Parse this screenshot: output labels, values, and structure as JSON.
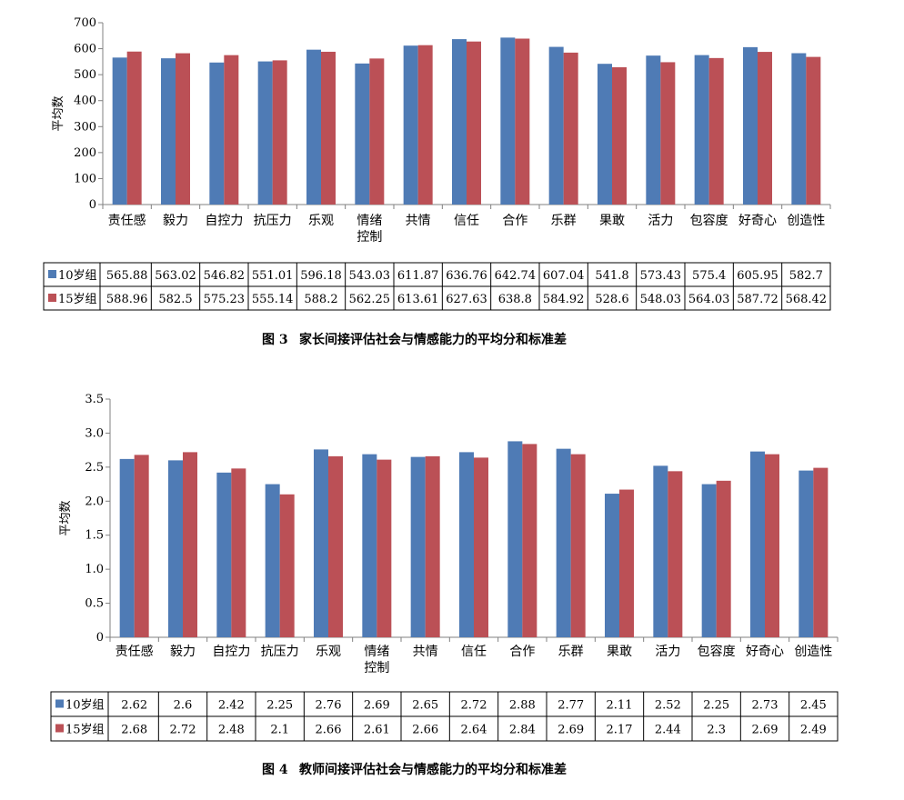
{
  "colors": {
    "s10": "#4f7bb5",
    "s15": "#bb5056",
    "axis": "#808080",
    "grid": "#000000"
  },
  "chart_data": [
    {
      "type": "bar",
      "title": "图 3　家长间接评估社会与情感能力的平均分和标准差",
      "caption_num": "图 3",
      "caption_text": "家长间接评估社会与情感能力的平均分和标准差",
      "ylabel": "平均数",
      "ylim": [
        0,
        700
      ],
      "yticks": [
        "0",
        "100",
        "200",
        "300",
        "400",
        "500",
        "600",
        "700"
      ],
      "ytick_values": [
        0,
        100,
        200,
        300,
        400,
        500,
        600,
        700
      ],
      "categories": [
        "责任感",
        "毅力",
        "自控力",
        "抗压力",
        "乐观",
        "情绪控制",
        "共情",
        "信任",
        "合作",
        "乐群",
        "果敢",
        "活力",
        "包容度",
        "好奇心",
        "创造性"
      ],
      "series": [
        {
          "name": "10岁组",
          "values": [
            565.88,
            563.02,
            546.82,
            551.01,
            596.18,
            543.03,
            611.87,
            636.76,
            642.74,
            607.04,
            541.8,
            573.43,
            575.4,
            605.95,
            582.7
          ],
          "labels": [
            "565.88",
            "563.02",
            "546.82",
            "551.01",
            "596.18",
            "543.03",
            "611.87",
            "636.76",
            "642.74",
            "607.04",
            "541.8",
            "573.43",
            "575.4",
            "605.95",
            "582.7"
          ]
        },
        {
          "name": "15岁组",
          "values": [
            588.96,
            582.5,
            575.23,
            555.14,
            588.2,
            562.25,
            613.61,
            627.63,
            638.8,
            584.92,
            528.6,
            548.03,
            564.03,
            587.72,
            568.42
          ],
          "labels": [
            "588.96",
            "582.5",
            "575.23",
            "555.14",
            "588.2",
            "562.25",
            "613.61",
            "627.63",
            "638.8",
            "584.92",
            "528.6",
            "548.03",
            "564.03",
            "587.72",
            "568.42"
          ]
        }
      ]
    },
    {
      "type": "bar",
      "title": "图 4　教师间接评估社会与情感能力的平均分和标准差",
      "caption_num": "图 4",
      "caption_text": "教师间接评估社会与情感能力的平均分和标准差",
      "ylabel": "平均数",
      "ylim": [
        0,
        3.5
      ],
      "yticks": [
        "0",
        "0.5",
        "1.0",
        "1.5",
        "2.0",
        "2.5",
        "3.0",
        "3.5"
      ],
      "ytick_values": [
        0,
        0.5,
        1.0,
        1.5,
        2.0,
        2.5,
        3.0,
        3.5
      ],
      "categories": [
        "责任感",
        "毅力",
        "自控力",
        "抗压力",
        "乐观",
        "情绪控制",
        "共情",
        "信任",
        "合作",
        "乐群",
        "果敢",
        "活力",
        "包容度",
        "好奇心",
        "创造性"
      ],
      "series": [
        {
          "name": "10岁组",
          "values": [
            2.62,
            2.6,
            2.42,
            2.25,
            2.76,
            2.69,
            2.65,
            2.72,
            2.88,
            2.77,
            2.11,
            2.52,
            2.25,
            2.73,
            2.45
          ],
          "labels": [
            "2.62",
            "2.6",
            "2.42",
            "2.25",
            "2.76",
            "2.69",
            "2.65",
            "2.72",
            "2.88",
            "2.77",
            "2.11",
            "2.52",
            "2.25",
            "2.73",
            "2.45"
          ]
        },
        {
          "name": "15岁组",
          "values": [
            2.68,
            2.72,
            2.48,
            2.1,
            2.66,
            2.61,
            2.66,
            2.64,
            2.84,
            2.69,
            2.17,
            2.44,
            2.3,
            2.69,
            2.49
          ],
          "labels": [
            "2.68",
            "2.72",
            "2.48",
            "2.1",
            "2.66",
            "2.61",
            "2.66",
            "2.64",
            "2.84",
            "2.69",
            "2.17",
            "2.44",
            "2.3",
            "2.69",
            "2.49"
          ]
        }
      ]
    }
  ]
}
